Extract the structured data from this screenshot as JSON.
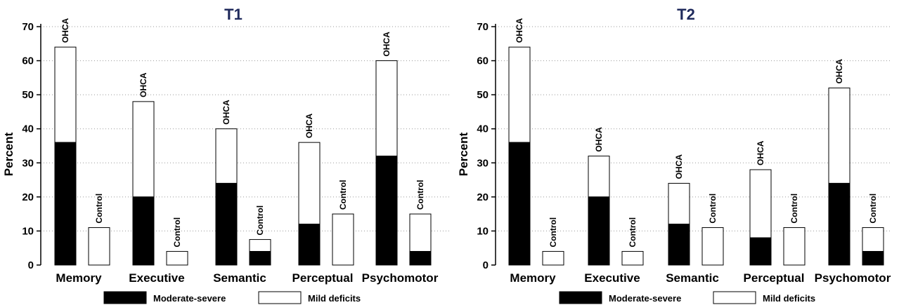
{
  "chart_data": [
    {
      "type": "bar",
      "stacked": true,
      "title": "T1",
      "ylabel": "Percent",
      "xlabel": "",
      "ylim": [
        0,
        70
      ],
      "yticks": [
        0,
        10,
        20,
        30,
        40,
        50,
        60,
        70
      ],
      "grid": "horizontal dotted",
      "categories": [
        "Memory",
        "Executive",
        "Semantic",
        "Perceptual",
        "Psychomotor"
      ],
      "groups": [
        {
          "label": "OHCA",
          "moderate_severe": [
            36,
            20,
            24,
            12,
            32
          ],
          "total": [
            64,
            48,
            40,
            36,
            60
          ]
        },
        {
          "label": "Control",
          "moderate_severe": [
            0,
            0,
            4,
            0,
            4
          ],
          "total": [
            11,
            4,
            7.5,
            15,
            15
          ]
        }
      ],
      "legend": {
        "position": "bottom",
        "entries": [
          {
            "label": "Moderate-severe",
            "color": "#000000"
          },
          {
            "label": "Mild deficits",
            "color": "#ffffff"
          }
        ]
      }
    },
    {
      "type": "bar",
      "stacked": true,
      "title": "T2",
      "ylabel": "Percent",
      "xlabel": "",
      "ylim": [
        0,
        70
      ],
      "yticks": [
        0,
        10,
        20,
        30,
        40,
        50,
        60,
        70
      ],
      "grid": "horizontal dotted",
      "categories": [
        "Memory",
        "Executive",
        "Semantic",
        "Perceptual",
        "Psychomotor"
      ],
      "groups": [
        {
          "label": "OHCA",
          "moderate_severe": [
            36,
            20,
            12,
            8,
            24
          ],
          "total": [
            64,
            32,
            24,
            28,
            52
          ]
        },
        {
          "label": "Control",
          "moderate_severe": [
            0,
            0,
            0,
            0,
            4
          ],
          "total": [
            4,
            4,
            11,
            11,
            11
          ]
        }
      ],
      "legend": {
        "position": "bottom",
        "entries": [
          {
            "label": "Moderate-severe",
            "color": "#000000"
          },
          {
            "label": "Mild deficits",
            "color": "#ffffff"
          }
        ]
      }
    }
  ]
}
